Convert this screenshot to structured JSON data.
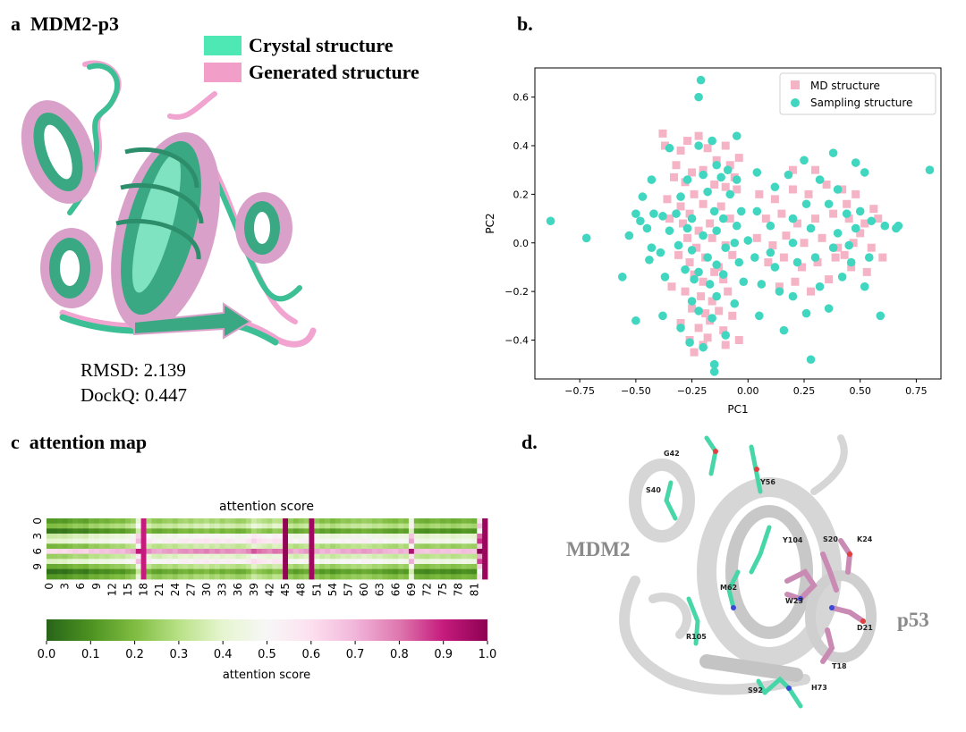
{
  "panel_a": {
    "label": "a",
    "title": "MDM2-p3",
    "legend": [
      {
        "name": "Crystal structure",
        "color": "#4de8b4"
      },
      {
        "name": "Generated structure",
        "color": "#f19ec9"
      }
    ],
    "rmsd": "RMSD: 2.139",
    "dockq": "DockQ: 0.447"
  },
  "panel_b": {
    "label": "b."
  },
  "panel_c": {
    "label": "c",
    "title": "attention map",
    "heatmap_title": "attention score",
    "colorbar_label": "attention score",
    "y_ticks": [
      "0",
      "3",
      "6",
      "9"
    ],
    "x_ticks": [
      "0",
      "3",
      "6",
      "9",
      "12",
      "15",
      "18",
      "21",
      "24",
      "27",
      "30",
      "33",
      "36",
      "39",
      "42",
      "45",
      "48",
      "51",
      "54",
      "57",
      "60",
      "63",
      "66",
      "69",
      "72",
      "75",
      "78",
      "81"
    ],
    "colorbar_ticks": [
      "0.0",
      "0.1",
      "0.2",
      "0.3",
      "0.4",
      "0.5",
      "0.6",
      "0.7",
      "0.8",
      "0.9",
      "1.0"
    ]
  },
  "panel_d": {
    "label": "d.",
    "mdm2_label": "MDM2",
    "p53_label": "p53",
    "residues": [
      "G42",
      "Y56",
      "S40",
      "Y104",
      "S20",
      "K24",
      "M62",
      "W23",
      "R105",
      "D21",
      "T18",
      "S92",
      "H73"
    ]
  },
  "chart_data": [
    {
      "type": "scatter",
      "xlabel": "PC1",
      "ylabel": "PC2",
      "xlim": [
        -0.95,
        0.86
      ],
      "ylim": [
        -0.56,
        0.72
      ],
      "x_ticks": [
        "-0.75",
        "-0.50",
        "-0.25",
        "0.00",
        "0.25",
        "0.50",
        "0.75"
      ],
      "y_ticks": [
        "-0.4",
        "-0.2",
        "0.0",
        "0.2",
        "0.4",
        "0.6"
      ],
      "legend_position": "top-right",
      "grid": false,
      "series": [
        {
          "name": "MD structure",
          "color": "#f5b4c6",
          "marker": "square",
          "points": [
            [
              -0.38,
              0.45
            ],
            [
              -0.37,
              0.4
            ],
            [
              -0.3,
              0.38
            ],
            [
              -0.27,
              0.42
            ],
            [
              -0.22,
              0.44
            ],
            [
              -0.18,
              0.39
            ],
            [
              -0.1,
              0.4
            ],
            [
              -0.04,
              0.35
            ],
            [
              -0.32,
              0.32
            ],
            [
              -0.25,
              0.29
            ],
            [
              -0.2,
              0.3
            ],
            [
              -0.14,
              0.34
            ],
            [
              -0.08,
              0.32
            ],
            [
              -0.33,
              0.27
            ],
            [
              -0.28,
              0.25
            ],
            [
              -0.24,
              0.2
            ],
            [
              -0.15,
              0.24
            ],
            [
              -0.1,
              0.23
            ],
            [
              -0.05,
              0.22
            ],
            [
              -0.36,
              0.18
            ],
            [
              -0.3,
              0.15
            ],
            [
              -0.26,
              0.12
            ],
            [
              -0.2,
              0.16
            ],
            [
              -0.12,
              0.15
            ],
            [
              -0.35,
              0.1
            ],
            [
              -0.29,
              0.08
            ],
            [
              -0.22,
              0.05
            ],
            [
              -0.17,
              0.08
            ],
            [
              -0.08,
              0.1
            ],
            [
              -0.27,
              0.02
            ],
            [
              -0.23,
              -0.02
            ],
            [
              -0.16,
              0.02
            ],
            [
              -0.1,
              -0.01
            ],
            [
              -0.31,
              -0.05
            ],
            [
              -0.26,
              -0.08
            ],
            [
              -0.19,
              -0.06
            ],
            [
              -0.13,
              -0.1
            ],
            [
              -0.07,
              -0.05
            ],
            [
              -0.24,
              -0.13
            ],
            [
              -0.2,
              -0.16
            ],
            [
              -0.15,
              -0.12
            ],
            [
              -0.11,
              -0.15
            ],
            [
              -0.34,
              -0.18
            ],
            [
              -0.28,
              -0.2
            ],
            [
              -0.21,
              -0.22
            ],
            [
              -0.16,
              -0.24
            ],
            [
              -0.09,
              -0.2
            ],
            [
              -0.25,
              -0.27
            ],
            [
              -0.19,
              -0.29
            ],
            [
              -0.13,
              -0.28
            ],
            [
              -0.07,
              -0.3
            ],
            [
              -0.3,
              -0.33
            ],
            [
              -0.22,
              -0.35
            ],
            [
              -0.17,
              -0.32
            ],
            [
              -0.11,
              -0.36
            ],
            [
              -0.26,
              -0.4
            ],
            [
              -0.2,
              -0.42
            ],
            [
              -0.24,
              -0.45
            ],
            [
              -0.1,
              -0.42
            ],
            [
              -0.04,
              -0.4
            ],
            [
              0.05,
              0.2
            ],
            [
              0.12,
              0.18
            ],
            [
              0.2,
              0.22
            ],
            [
              0.27,
              0.2
            ],
            [
              0.35,
              0.24
            ],
            [
              0.42,
              0.22
            ],
            [
              0.48,
              0.2
            ],
            [
              0.08,
              0.1
            ],
            [
              0.15,
              0.12
            ],
            [
              0.22,
              0.08
            ],
            [
              0.3,
              0.1
            ],
            [
              0.38,
              0.12
            ],
            [
              0.45,
              0.1
            ],
            [
              0.52,
              0.08
            ],
            [
              0.58,
              0.1
            ],
            [
              0.04,
              0.02
            ],
            [
              0.11,
              -0.01
            ],
            [
              0.17,
              0.03
            ],
            [
              0.25,
              0.0
            ],
            [
              0.33,
              0.02
            ],
            [
              0.4,
              -0.02
            ],
            [
              0.47,
              0.0
            ],
            [
              0.55,
              -0.02
            ],
            [
              0.09,
              -0.08
            ],
            [
              0.16,
              -0.06
            ],
            [
              0.24,
              -0.1
            ],
            [
              0.31,
              -0.08
            ],
            [
              0.39,
              -0.06
            ],
            [
              0.46,
              -0.1
            ],
            [
              0.53,
              -0.12
            ],
            [
              0.14,
              -0.18
            ],
            [
              0.21,
              -0.16
            ],
            [
              0.28,
              -0.2
            ],
            [
              0.36,
              -0.15
            ],
            [
              0.43,
              -0.05
            ],
            [
              0.5,
              0.04
            ],
            [
              0.56,
              0.14
            ],
            [
              0.6,
              -0.06
            ],
            [
              0.2,
              0.3
            ],
            [
              0.3,
              0.3
            ],
            [
              0.44,
              0.16
            ],
            [
              -0.06,
              0.27
            ],
            [
              -0.18,
              -0.39
            ]
          ]
        },
        {
          "name": "Sampling structure",
          "color": "#40d6c0",
          "marker": "circle",
          "points": [
            [
              -0.21,
              0.67
            ],
            [
              -0.22,
              0.6
            ],
            [
              -0.16,
              0.42
            ],
            [
              -0.22,
              0.4
            ],
            [
              -0.35,
              0.39
            ],
            [
              -0.05,
              0.44
            ],
            [
              -0.14,
              0.32
            ],
            [
              -0.09,
              0.3
            ],
            [
              -0.2,
              0.28
            ],
            [
              -0.12,
              0.27
            ],
            [
              -0.27,
              0.26
            ],
            [
              -0.05,
              0.26
            ],
            [
              -0.43,
              0.26
            ],
            [
              -0.47,
              0.19
            ],
            [
              -0.3,
              0.19
            ],
            [
              -0.18,
              0.21
            ],
            [
              -0.08,
              0.2
            ],
            [
              -0.5,
              0.12
            ],
            [
              -0.42,
              0.12
            ],
            [
              -0.38,
              0.11
            ],
            [
              -0.32,
              0.12
            ],
            [
              -0.25,
              0.1
            ],
            [
              -0.15,
              0.13
            ],
            [
              -0.11,
              0.1
            ],
            [
              -0.03,
              0.13
            ],
            [
              -0.88,
              0.09
            ],
            [
              -0.72,
              0.02
            ],
            [
              -0.48,
              0.09
            ],
            [
              -0.45,
              0.06
            ],
            [
              -0.35,
              0.05
            ],
            [
              -0.27,
              0.06
            ],
            [
              -0.2,
              0.03
            ],
            [
              -0.14,
              0.05
            ],
            [
              -0.06,
              0.0
            ],
            [
              0.0,
              0.01
            ],
            [
              -0.53,
              0.03
            ],
            [
              -0.43,
              -0.02
            ],
            [
              -0.39,
              -0.04
            ],
            [
              -0.31,
              -0.01
            ],
            [
              -0.25,
              -0.03
            ],
            [
              -0.18,
              -0.06
            ],
            [
              -0.1,
              -0.02
            ],
            [
              -0.04,
              -0.08
            ],
            [
              -0.44,
              -0.07
            ],
            [
              -0.28,
              -0.11
            ],
            [
              -0.22,
              -0.12
            ],
            [
              -0.14,
              -0.09
            ],
            [
              -0.56,
              -0.14
            ],
            [
              -0.37,
              -0.14
            ],
            [
              -0.24,
              -0.15
            ],
            [
              -0.17,
              -0.17
            ],
            [
              -0.11,
              -0.13
            ],
            [
              -0.02,
              -0.16
            ],
            [
              -0.5,
              -0.32
            ],
            [
              -0.38,
              -0.3
            ],
            [
              -0.25,
              -0.24
            ],
            [
              -0.14,
              -0.22
            ],
            [
              -0.06,
              -0.25
            ],
            [
              -0.3,
              -0.35
            ],
            [
              -0.22,
              -0.28
            ],
            [
              -0.16,
              -0.31
            ],
            [
              -0.1,
              -0.38
            ],
            [
              -0.26,
              -0.41
            ],
            [
              -0.2,
              -0.43
            ],
            [
              -0.15,
              -0.5
            ],
            [
              -0.15,
              -0.53
            ],
            [
              0.25,
              0.34
            ],
            [
              0.38,
              0.37
            ],
            [
              0.48,
              0.33
            ],
            [
              0.04,
              0.29
            ],
            [
              0.18,
              0.28
            ],
            [
              0.32,
              0.26
            ],
            [
              0.52,
              0.29
            ],
            [
              0.12,
              0.23
            ],
            [
              0.26,
              0.16
            ],
            [
              0.36,
              0.16
            ],
            [
              0.44,
              0.12
            ],
            [
              0.5,
              0.13
            ],
            [
              0.61,
              0.07
            ],
            [
              0.66,
              0.06
            ],
            [
              0.04,
              0.13
            ],
            [
              0.1,
              0.07
            ],
            [
              0.2,
              0.1
            ],
            [
              0.28,
              0.06
            ],
            [
              0.4,
              0.04
            ],
            [
              0.48,
              0.06
            ],
            [
              0.55,
              0.09
            ],
            [
              0.67,
              0.07
            ],
            [
              0.81,
              0.3
            ],
            [
              -0.05,
              0.07
            ],
            [
              0.03,
              -0.06
            ],
            [
              0.12,
              -0.1
            ],
            [
              0.22,
              -0.08
            ],
            [
              0.3,
              -0.06
            ],
            [
              0.38,
              -0.02
            ],
            [
              0.46,
              -0.08
            ],
            [
              0.54,
              -0.06
            ],
            [
              0.06,
              -0.17
            ],
            [
              0.14,
              -0.2
            ],
            [
              0.2,
              -0.22
            ],
            [
              0.32,
              -0.18
            ],
            [
              0.42,
              -0.14
            ],
            [
              0.52,
              -0.18
            ],
            [
              0.26,
              -0.29
            ],
            [
              0.36,
              -0.27
            ],
            [
              0.16,
              -0.36
            ],
            [
              0.05,
              -0.3
            ],
            [
              0.59,
              -0.3
            ],
            [
              0.28,
              -0.48
            ],
            [
              0.45,
              -0.01
            ],
            [
              0.4,
              0.22
            ],
            [
              0.2,
              0.0
            ],
            [
              0.1,
              -0.04
            ]
          ]
        }
      ]
    },
    {
      "type": "heatmap",
      "title": "attention score",
      "n_rows": 12,
      "n_cols": 84,
      "colorbar_range": [
        0.0,
        1.0
      ],
      "column_scores": [
        0.22,
        0.22,
        0.23,
        0.22,
        0.24,
        0.26,
        0.25,
        0.24,
        0.28,
        0.27,
        0.29,
        0.28,
        0.3,
        0.31,
        0.3,
        0.33,
        0.35,
        0.52,
        0.9,
        0.38,
        0.34,
        0.33,
        0.35,
        0.36,
        0.34,
        0.37,
        0.38,
        0.36,
        0.39,
        0.38,
        0.4,
        0.37,
        0.39,
        0.36,
        0.38,
        0.37,
        0.35,
        0.36,
        0.39,
        0.45,
        0.42,
        0.4,
        0.38,
        0.42,
        0.41,
        0.99,
        0.35,
        0.32,
        0.34,
        0.36,
        0.97,
        0.34,
        0.31,
        0.33,
        0.3,
        0.32,
        0.34,
        0.33,
        0.35,
        0.34,
        0.36,
        0.35,
        0.33,
        0.34,
        0.32,
        0.31,
        0.3,
        0.33,
        0.31,
        0.55,
        0.29,
        0.28,
        0.27,
        0.29,
        0.3,
        0.28,
        0.29,
        0.27,
        0.28,
        0.3,
        0.29,
        0.28,
        0.7,
        0.98
      ],
      "row_scores": [
        0.3,
        0.4,
        0.22,
        0.55,
        0.62,
        0.38,
        0.85,
        0.45,
        0.6,
        0.35,
        0.2,
        0.3
      ]
    }
  ]
}
